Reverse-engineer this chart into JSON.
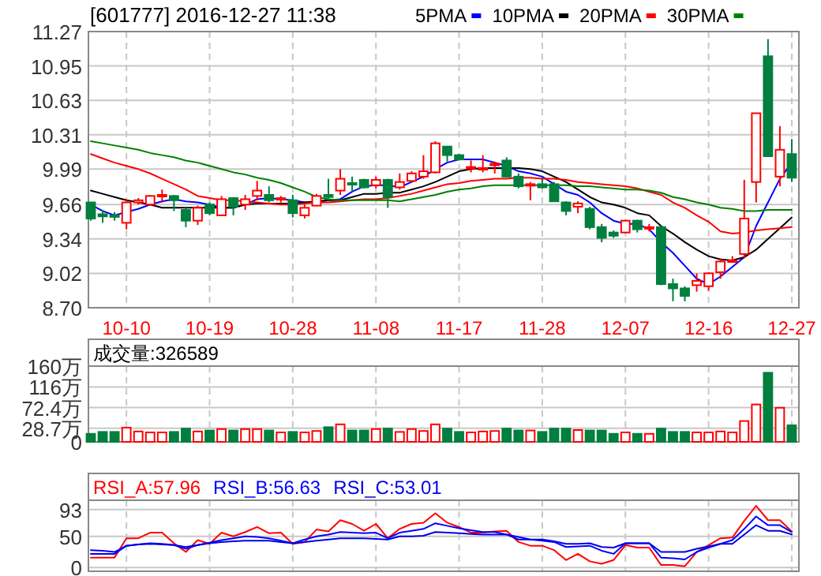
{
  "chart_data": [
    {
      "type": "candlestick",
      "title": "[601777] 2016-12-27 11:38",
      "legend": "top right",
      "grid": true,
      "tick_labels": true,
      "categories": [
        null,
        null,
        null,
        "10-10",
        null,
        null,
        null,
        null,
        null,
        null,
        "10-19",
        null,
        null,
        null,
        null,
        null,
        null,
        "10-28",
        null,
        null,
        null,
        null,
        null,
        null,
        "11-08",
        null,
        null,
        null,
        null,
        null,
        null,
        "11-17",
        null,
        null,
        null,
        null,
        null,
        null,
        "11-28",
        null,
        null,
        null,
        null,
        null,
        null,
        "12-07",
        null,
        null,
        null,
        null,
        null,
        null,
        "12-16",
        null,
        null,
        null,
        null,
        null,
        null,
        "12-27"
      ],
      "ylim": [
        8.7,
        11.27
      ],
      "yticks": [
        {
          "value": 8.7,
          "label": "8.70"
        },
        9.02,
        9.34,
        9.66,
        9.99,
        10.31,
        10.63,
        10.95,
        11.27
      ],
      "ohlc": [
        [
          9.68,
          9.68,
          9.51,
          9.53
        ],
        [
          9.57,
          9.61,
          9.49,
          9.55
        ],
        [
          9.56,
          9.59,
          9.51,
          9.55
        ],
        [
          9.49,
          9.71,
          9.43,
          9.68
        ],
        [
          9.68,
          9.72,
          9.66,
          9.7
        ],
        [
          9.66,
          9.75,
          9.65,
          9.74
        ],
        [
          9.74,
          9.8,
          9.68,
          9.75
        ],
        [
          9.74,
          9.75,
          9.6,
          9.7
        ],
        [
          9.61,
          9.63,
          9.45,
          9.51
        ],
        [
          9.51,
          9.65,
          9.47,
          9.63
        ],
        [
          9.66,
          9.68,
          9.56,
          9.58
        ],
        [
          9.56,
          9.74,
          9.56,
          9.71
        ],
        [
          9.72,
          9.73,
          9.56,
          9.64
        ],
        [
          9.66,
          9.75,
          9.61,
          9.71
        ],
        [
          9.74,
          9.88,
          9.7,
          9.79
        ],
        [
          9.75,
          9.83,
          9.68,
          9.7
        ],
        [
          9.71,
          9.74,
          9.68,
          9.72
        ],
        [
          9.7,
          9.75,
          9.54,
          9.58
        ],
        [
          9.56,
          9.66,
          9.53,
          9.63
        ],
        [
          9.65,
          9.76,
          9.65,
          9.74
        ],
        [
          9.75,
          9.9,
          9.7,
          9.73
        ],
        [
          9.79,
          9.99,
          9.75,
          9.9
        ],
        [
          9.86,
          9.92,
          9.78,
          9.85
        ],
        [
          9.89,
          9.9,
          9.81,
          9.82
        ],
        [
          9.84,
          9.92,
          9.81,
          9.89
        ],
        [
          9.89,
          9.9,
          9.63,
          9.73
        ],
        [
          9.82,
          9.95,
          9.8,
          9.87
        ],
        [
          9.88,
          9.97,
          9.87,
          9.95
        ],
        [
          9.92,
          10.12,
          9.9,
          9.97
        ],
        [
          9.96,
          10.25,
          9.95,
          10.23
        ],
        [
          10.2,
          10.2,
          10.06,
          10.12
        ],
        [
          10.12,
          10.13,
          10.07,
          10.08
        ],
        [
          10.0,
          10.07,
          9.96,
          10.01
        ],
        [
          9.99,
          10.12,
          9.96,
          10.0
        ],
        [
          10.03,
          10.06,
          9.95,
          10.04
        ],
        [
          10.07,
          10.1,
          9.91,
          9.92
        ],
        [
          9.92,
          9.95,
          9.81,
          9.83
        ],
        [
          9.84,
          9.87,
          9.7,
          9.85
        ],
        [
          9.85,
          9.9,
          9.81,
          9.82
        ],
        [
          9.85,
          9.87,
          9.69,
          9.69
        ],
        [
          9.68,
          9.69,
          9.56,
          9.6
        ],
        [
          9.64,
          9.69,
          9.58,
          9.67
        ],
        [
          9.62,
          9.64,
          9.43,
          9.45
        ],
        [
          9.45,
          9.48,
          9.31,
          9.35
        ],
        [
          9.4,
          9.42,
          9.35,
          9.37
        ],
        [
          9.4,
          9.52,
          9.39,
          9.51
        ],
        [
          9.51,
          9.52,
          9.4,
          9.43
        ],
        [
          9.44,
          9.48,
          9.41,
          9.45
        ],
        [
          9.45,
          9.46,
          8.91,
          8.92
        ],
        [
          8.92,
          8.97,
          8.76,
          8.88
        ],
        [
          8.88,
          8.9,
          8.76,
          8.81
        ],
        [
          8.91,
          9.02,
          8.85,
          8.95
        ],
        [
          8.9,
          9.03,
          8.86,
          9.02
        ],
        [
          9.03,
          9.16,
          8.97,
          9.13
        ],
        [
          9.13,
          9.18,
          9.12,
          9.14
        ],
        [
          9.2,
          9.89,
          9.16,
          9.53
        ],
        [
          9.87,
          10.51,
          9.68,
          10.51
        ],
        [
          11.04,
          11.2,
          10.11,
          10.11
        ],
        [
          9.92,
          10.39,
          9.83,
          10.17
        ],
        [
          10.13,
          10.27,
          9.87,
          9.91
        ]
      ],
      "colors": [
        "#007f3f",
        "#007f3f",
        "#007f3f",
        "#ff0000",
        "#ff0000",
        "#ff0000",
        "#ff0000",
        "#007f3f",
        "#007f3f",
        "#ff0000",
        "#007f3f",
        "#ff0000",
        "#007f3f",
        "#ff0000",
        "#ff0000",
        "#007f3f",
        "#ff0000",
        "#007f3f",
        "#ff0000",
        "#ff0000",
        "#007f3f",
        "#ff0000",
        "#007f3f",
        "#007f3f",
        "#ff0000",
        "#007f3f",
        "#ff0000",
        "#ff0000",
        "#ff0000",
        "#ff0000",
        "#007f3f",
        "#007f3f",
        "#ff0000",
        "#ff0000",
        "#ff0000",
        "#007f3f",
        "#007f3f",
        "#ff0000",
        "#007f3f",
        "#007f3f",
        "#007f3f",
        "#ff0000",
        "#007f3f",
        "#007f3f",
        "#007f3f",
        "#ff0000",
        "#007f3f",
        "#ff0000",
        "#007f3f",
        "#007f3f",
        "#007f3f",
        "#ff0000",
        "#ff0000",
        "#ff0000",
        "#ff0000",
        "#ff0000",
        "#ff0000",
        "#007f3f",
        "#ff0000",
        "#007f3f"
      ],
      "series": [
        {
          "name": "5PMA",
          "type": "line",
          "color": "#0000ff",
          "values": [
            9.66,
            9.6,
            9.56,
            9.59,
            9.62,
            9.66,
            9.69,
            9.71,
            9.69,
            9.68,
            9.66,
            9.63,
            9.63,
            9.66,
            9.71,
            9.72,
            9.71,
            9.7,
            9.68,
            9.68,
            9.7,
            9.71,
            9.78,
            9.83,
            9.84,
            9.84,
            9.82,
            9.87,
            9.92,
            9.99,
            10.05,
            10.08,
            10.08,
            10.08,
            10.05,
            10.02,
            9.97,
            9.95,
            9.92,
            9.85,
            9.78,
            9.75,
            9.68,
            9.58,
            9.51,
            9.48,
            9.48,
            9.43,
            9.31,
            9.21,
            9.09,
            8.97,
            8.92,
            8.99,
            9.08,
            9.17,
            9.46,
            9.68,
            9.9,
            10.05
          ]
        },
        {
          "name": "10PMA",
          "type": "line",
          "color": "#000000",
          "values": [
            9.79,
            9.76,
            9.73,
            9.7,
            9.68,
            9.66,
            9.63,
            9.63,
            9.63,
            9.63,
            9.63,
            9.63,
            9.63,
            9.66,
            9.67,
            9.67,
            9.67,
            9.67,
            9.68,
            9.69,
            9.7,
            9.7,
            9.73,
            9.76,
            9.76,
            9.77,
            9.77,
            9.8,
            9.83,
            9.87,
            9.92,
            9.97,
            9.99,
            10.0,
            10.0,
            10.0,
            10.0,
            9.99,
            9.97,
            9.92,
            9.87,
            9.8,
            9.73,
            9.68,
            9.66,
            9.63,
            9.58,
            9.56,
            9.46,
            9.39,
            9.31,
            9.24,
            9.18,
            9.15,
            9.14,
            9.17,
            9.24,
            9.34,
            9.44,
            9.54
          ]
        },
        {
          "name": "20PMA",
          "type": "line",
          "color": "#ff0000",
          "values": [
            10.13,
            10.09,
            10.05,
            10.02,
            9.99,
            9.95,
            9.9,
            9.85,
            9.8,
            9.74,
            9.72,
            9.7,
            9.7,
            9.69,
            9.68,
            9.67,
            9.66,
            9.66,
            9.67,
            9.68,
            9.68,
            9.69,
            9.7,
            9.71,
            9.71,
            9.72,
            9.74,
            9.76,
            9.79,
            9.82,
            9.85,
            9.86,
            9.88,
            9.89,
            9.9,
            9.9,
            9.91,
            9.91,
            9.9,
            9.9,
            9.89,
            9.87,
            9.86,
            9.85,
            9.84,
            9.83,
            9.81,
            9.78,
            9.75,
            9.68,
            9.63,
            9.56,
            9.5,
            9.41,
            9.39,
            9.4,
            9.42,
            9.43,
            9.44,
            9.45
          ]
        },
        {
          "name": "30PMA",
          "type": "line",
          "color": "#008000",
          "values": [
            10.25,
            10.23,
            10.21,
            10.19,
            10.17,
            10.14,
            10.12,
            10.1,
            10.07,
            10.05,
            10.02,
            9.99,
            9.96,
            9.94,
            9.91,
            9.89,
            9.86,
            9.82,
            9.78,
            9.73,
            9.71,
            9.7,
            9.7,
            9.7,
            9.7,
            9.7,
            9.69,
            9.71,
            9.73,
            9.75,
            9.78,
            9.8,
            9.81,
            9.83,
            9.84,
            9.84,
            9.84,
            9.84,
            9.84,
            9.84,
            9.84,
            9.83,
            9.83,
            9.82,
            9.81,
            9.8,
            9.8,
            9.79,
            9.77,
            9.73,
            9.71,
            9.68,
            9.66,
            9.63,
            9.62,
            9.6,
            9.6,
            9.61,
            9.61,
            9.61
          ]
        }
      ]
    },
    {
      "type": "bar",
      "title": "成交量:326589",
      "grid": true,
      "tick_labels": "y",
      "categories": [
        null,
        null,
        null,
        null,
        null,
        null,
        null,
        null,
        null,
        null,
        null,
        null,
        null,
        null,
        null,
        null,
        null,
        null,
        null,
        null,
        null,
        null,
        null,
        null,
        null,
        null,
        null,
        null,
        null,
        null,
        null,
        null,
        null,
        null,
        null,
        null,
        null,
        null,
        null,
        null,
        null,
        null,
        null,
        null,
        null,
        null,
        null,
        null,
        null,
        null,
        null,
        null,
        null,
        null,
        null,
        null,
        null,
        null,
        null,
        null
      ],
      "ylim": [
        0,
        160
      ],
      "yticks": [
        0,
        {
          "value": 28.7,
          "label": "28.7万"
        },
        {
          "value": 72.4,
          "label": "72.4万"
        },
        {
          "value": 116,
          "label": "116万"
        },
        {
          "value": 160,
          "label": "160万"
        }
      ],
      "values": [
        17,
        21,
        21,
        30,
        22,
        20,
        20,
        21,
        28,
        22,
        24,
        27,
        24,
        27,
        27,
        24,
        20,
        21,
        20,
        23,
        31,
        37,
        24,
        24,
        27,
        28,
        21,
        27,
        23,
        37,
        28,
        21,
        20,
        22,
        23,
        28,
        24,
        24,
        21,
        28,
        28,
        25,
        24,
        24,
        17,
        20,
        17,
        17,
        28,
        21,
        21,
        20,
        20,
        22,
        20,
        44,
        79,
        146,
        72,
        35
      ],
      "colors": [
        "#007f3f",
        "#007f3f",
        "#007f3f",
        "#ff0000",
        "#ff0000",
        "#ff0000",
        "#ff0000",
        "#007f3f",
        "#007f3f",
        "#ff0000",
        "#007f3f",
        "#ff0000",
        "#007f3f",
        "#ff0000",
        "#ff0000",
        "#007f3f",
        "#ff0000",
        "#007f3f",
        "#ff0000",
        "#ff0000",
        "#007f3f",
        "#ff0000",
        "#007f3f",
        "#007f3f",
        "#ff0000",
        "#007f3f",
        "#ff0000",
        "#ff0000",
        "#ff0000",
        "#ff0000",
        "#007f3f",
        "#007f3f",
        "#ff0000",
        "#ff0000",
        "#ff0000",
        "#007f3f",
        "#007f3f",
        "#ff0000",
        "#007f3f",
        "#007f3f",
        "#007f3f",
        "#ff0000",
        "#007f3f",
        "#007f3f",
        "#007f3f",
        "#ff0000",
        "#007f3f",
        "#ff0000",
        "#007f3f",
        "#007f3f",
        "#007f3f",
        "#ff0000",
        "#ff0000",
        "#ff0000",
        "#ff0000",
        "#ff0000",
        "#ff0000",
        "#007f3f",
        "#ff0000",
        "#007f3f"
      ]
    },
    {
      "type": "line",
      "legend": "top left",
      "grid": true,
      "tick_labels": "y",
      "categories": [
        null,
        null,
        null,
        null,
        null,
        null,
        null,
        null,
        null,
        null,
        null,
        null,
        null,
        null,
        null,
        null,
        null,
        null,
        null,
        null,
        null,
        null,
        null,
        null,
        null,
        null,
        null,
        null,
        null,
        null,
        null,
        null,
        null,
        null,
        null,
        null,
        null,
        null,
        null,
        null,
        null,
        null,
        null,
        null,
        null,
        null,
        null,
        null,
        null,
        null,
        null,
        null,
        null,
        null,
        null,
        null,
        null,
        null,
        null,
        null
      ],
      "ylim": [
        -6,
        108
      ],
      "yticks": [
        0,
        50,
        93
      ],
      "series": [
        {
          "name": "RSI_A:57.96",
          "color": "#ff0000",
          "values": [
            16,
            16,
            16,
            47,
            47,
            56,
            56,
            39,
            25,
            44,
            38,
            56,
            50,
            57,
            65,
            55,
            56,
            38,
            41,
            61,
            58,
            76,
            70,
            59,
            70,
            47,
            62,
            70,
            72,
            87,
            72,
            65,
            56,
            56,
            58,
            59,
            41,
            35,
            35,
            28,
            12,
            22,
            10,
            6,
            12,
            36,
            32,
            32,
            4,
            4,
            2,
            25,
            36,
            47,
            48,
            75,
            99,
            76,
            76,
            58
          ]
        },
        {
          "name": "RSI_B:56.63",
          "color": "#0000ff",
          "values": [
            28,
            27,
            25,
            35,
            37,
            39,
            38,
            36,
            30,
            36,
            40,
            44,
            47,
            50,
            49,
            47,
            43,
            39,
            45,
            50,
            53,
            57,
            56,
            55,
            56,
            47,
            56,
            59,
            62,
            71,
            67,
            63,
            60,
            57,
            57,
            53,
            49,
            45,
            43,
            41,
            33,
            34,
            35,
            27,
            22,
            39,
            39,
            39,
            16,
            15,
            13,
            25,
            32,
            38,
            44,
            62,
            82,
            68,
            68,
            57
          ]
        },
        {
          "name": "RSI_C:53.01",
          "color": "#0000e6",
          "values": [
            22,
            22,
            22,
            35,
            37,
            38,
            37,
            36,
            33,
            36,
            39,
            41,
            42,
            43,
            43,
            43,
            41,
            39,
            41,
            43,
            45,
            47,
            47,
            47,
            46,
            45,
            50,
            50,
            51,
            57,
            56,
            55,
            54,
            53,
            53,
            53,
            45,
            45,
            45,
            42,
            38,
            38,
            39,
            33,
            32,
            39,
            39,
            39,
            25,
            25,
            25,
            30,
            34,
            38,
            38,
            53,
            68,
            59,
            59,
            53
          ]
        }
      ]
    }
  ]
}
